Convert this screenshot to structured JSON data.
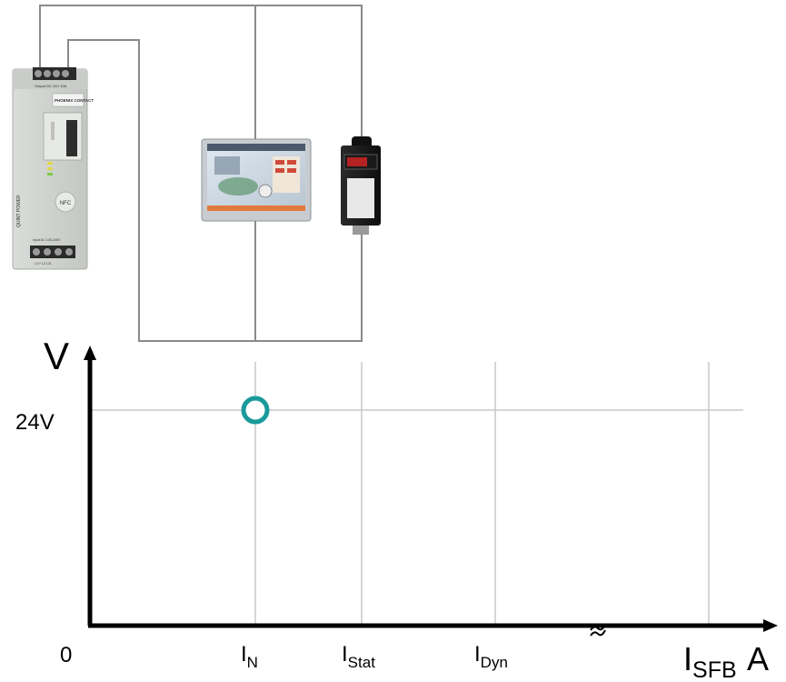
{
  "power_supply": {
    "brand": "PHOENIX CONTACT",
    "side_text": "QUINT POWER",
    "nfc_label": "NFC",
    "output_label": "Output DC 24V 10A",
    "input_label": "Input AC 100-240V",
    "input_terminals": "L1/+ L2 L3/-"
  },
  "chart": {
    "y_axis_label": "V",
    "x_axis_label": "A",
    "origin_label": "0",
    "y_ticks": [
      {
        "label": "24V",
        "value": 24
      }
    ],
    "x_ticks": [
      {
        "main": "I",
        "sub": "N"
      },
      {
        "main": "I",
        "sub": "Stat"
      },
      {
        "main": "I",
        "sub": "Dyn"
      },
      {
        "main": "I",
        "sub": "SFB"
      }
    ],
    "axis_break_symbol": "≈",
    "marker": {
      "x": "I_N",
      "y": 24,
      "color": "#1a9a9a"
    }
  },
  "colors": {
    "grid": "#c8c8c8",
    "wire": "#8a8a8a",
    "axis": "#000000",
    "marker": "#1a9a9a"
  }
}
